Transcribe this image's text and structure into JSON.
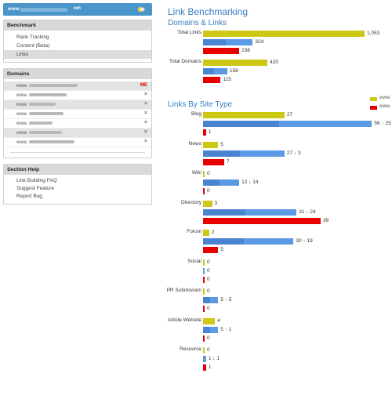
{
  "header": {
    "logo_text": "www.",
    "logo_suffix": "om"
  },
  "sidebar": {
    "benchmark": {
      "title": "Benchmark",
      "items": [
        {
          "label": "Rank Tracking",
          "active": false
        },
        {
          "label": "Content (Beta)",
          "active": false
        },
        {
          "label": "Links",
          "active": true
        }
      ]
    },
    "domains": {
      "title": "Domains",
      "items": [
        {
          "prefix": "www.",
          "badge": "ME",
          "shaded": true,
          "blur": 62
        },
        {
          "prefix": "www.",
          "badge": "",
          "shaded": false,
          "blur": 48
        },
        {
          "prefix": "www.",
          "badge": "",
          "shaded": true,
          "blur": 34
        },
        {
          "prefix": "www.",
          "badge": "",
          "shaded": false,
          "blur": 44
        },
        {
          "prefix": "www.",
          "badge": "",
          "shaded": false,
          "blur": 30
        },
        {
          "prefix": "www.",
          "badge": "",
          "shaded": true,
          "blur": 42
        },
        {
          "prefix": "www.",
          "badge": "",
          "shaded": false,
          "blur": 58
        }
      ]
    },
    "help": {
      "title": "Section Help",
      "items": [
        "Link Building FAQ",
        "Suggest Feature",
        "Report Bug"
      ]
    }
  },
  "main": {
    "page_title": "Link Benchmarking",
    "section1_title": "Domains & Links",
    "section2_title": "Links By Site Type",
    "legend": [
      {
        "text": "www.",
        "color": "#cdc814"
      },
      {
        "text": "www.",
        "color": "#e60000"
      }
    ]
  },
  "chart_data": [
    {
      "type": "bar",
      "title": "Domains & Links",
      "categories": [
        "Total Links",
        "Total Domains"
      ],
      "series": [
        {
          "color": "#cdc814",
          "values": [
            1053,
            420
          ]
        },
        {
          "color": "#5b9be6",
          "values": [
            324,
            158
          ]
        },
        {
          "color": "#e60000",
          "values": [
            236,
            115
          ]
        }
      ],
      "value_labels": [
        [
          "1,053",
          "420"
        ],
        [
          "324",
          "158"
        ],
        [
          "236",
          "115"
        ]
      ]
    },
    {
      "type": "bar",
      "title": "Links By Site Type",
      "categories": [
        "Blog",
        "News",
        "Wiki",
        "Directory",
        "Forum",
        "Social",
        "PR Submission",
        "Article Website",
        "Resource"
      ],
      "series": [
        {
          "color": "#cdc814",
          "values": [
            27,
            5,
            0,
            3,
            2,
            0,
            0,
            4,
            0
          ]
        },
        {
          "color": "#5b9be6",
          "values": [
            56,
            27,
            12,
            31,
            30,
            0,
            5,
            5,
            1
          ],
          "change": [
            {
              "dir": "up",
              "value": 25
            },
            {
              "dir": "down",
              "value": 3
            },
            {
              "dir": "down",
              "value": 14
            },
            {
              "dir": "down",
              "value": 24
            },
            {
              "dir": "up",
              "value": 19
            },
            null,
            {
              "dir": "up",
              "value": 5
            },
            {
              "dir": "up",
              "value": 1
            },
            {
              "dir": "down",
              "value": 1
            }
          ]
        },
        {
          "color": "#e60000",
          "values": [
            1,
            7,
            0,
            39,
            5,
            0,
            0,
            0,
            1
          ]
        }
      ]
    }
  ]
}
